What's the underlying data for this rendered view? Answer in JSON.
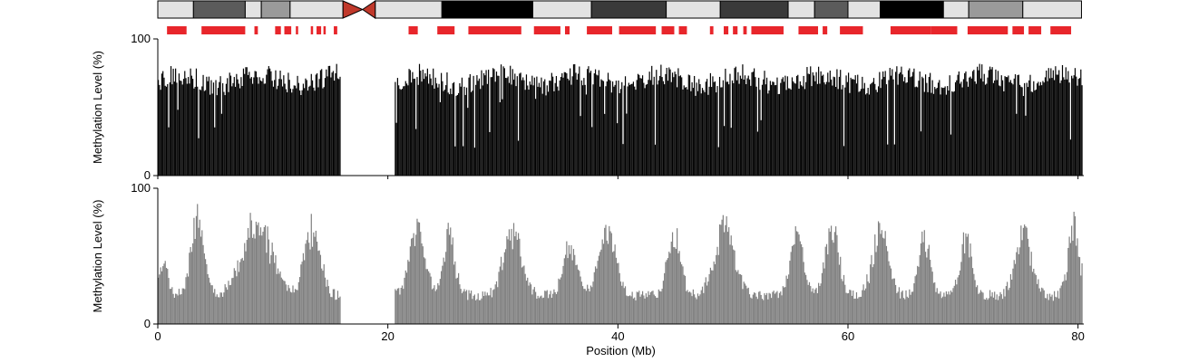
{
  "chart_data": {
    "type": "bar",
    "xlabel": "Position (Mb)",
    "xlim": [
      0,
      80.5
    ],
    "x_ticks": [
      0,
      20,
      40,
      60,
      80
    ],
    "gap_mb": [
      15.9,
      20.6
    ],
    "bin_mb": 0.1,
    "ideogram": {
      "centromere_mb": 17.8,
      "bands": [
        {
          "start": 0,
          "end": 3.1,
          "stain": "#e3e3e3"
        },
        {
          "start": 3.1,
          "end": 7.6,
          "stain": "#5b5b5b"
        },
        {
          "start": 7.6,
          "end": 9.0,
          "stain": "#e3e3e3"
        },
        {
          "start": 9.0,
          "end": 11.5,
          "stain": "#9a9a9a"
        },
        {
          "start": 11.5,
          "end": 16.1,
          "stain": "#e3e3e3"
        },
        {
          "start": 18.9,
          "end": 24.7,
          "stain": "#e3e3e3"
        },
        {
          "start": 24.7,
          "end": 32.6,
          "stain": "#000000"
        },
        {
          "start": 32.6,
          "end": 37.7,
          "stain": "#e3e3e3"
        },
        {
          "start": 37.7,
          "end": 44.2,
          "stain": "#3a3a3a"
        },
        {
          "start": 44.2,
          "end": 48.9,
          "stain": "#e3e3e3"
        },
        {
          "start": 48.9,
          "end": 54.8,
          "stain": "#3a3a3a"
        },
        {
          "start": 54.8,
          "end": 57.1,
          "stain": "#e3e3e3"
        },
        {
          "start": 57.1,
          "end": 60.0,
          "stain": "#5b5b5b"
        },
        {
          "start": 60.0,
          "end": 62.8,
          "stain": "#e3e3e3"
        },
        {
          "start": 62.8,
          "end": 68.3,
          "stain": "#000000"
        },
        {
          "start": 68.3,
          "end": 70.5,
          "stain": "#e3e3e3"
        },
        {
          "start": 70.5,
          "end": 75.2,
          "stain": "#9a9a9a"
        },
        {
          "start": 75.2,
          "end": 80.3,
          "stain": "#e3e3e3"
        }
      ]
    },
    "highlight_color": "#e8262b",
    "highlight_regions_mb": [
      [
        0.8,
        2.5
      ],
      [
        3.8,
        7.6
      ],
      [
        8.4,
        8.7
      ],
      [
        10.2,
        10.7
      ],
      [
        11.0,
        11.6
      ],
      [
        12.0,
        12.2
      ],
      [
        13.3,
        13.5
      ],
      [
        13.8,
        14.2
      ],
      [
        14.4,
        14.6
      ],
      [
        15.3,
        15.6
      ],
      [
        21.8,
        22.6
      ],
      [
        24.3,
        25.8
      ],
      [
        27.0,
        31.6
      ],
      [
        32.7,
        35.0
      ],
      [
        35.4,
        35.8
      ],
      [
        37.3,
        39.5
      ],
      [
        40.1,
        43.3
      ],
      [
        43.8,
        44.9
      ],
      [
        45.3,
        46.0
      ],
      [
        48.0,
        48.3
      ],
      [
        49.2,
        49.6
      ],
      [
        50.0,
        50.4
      ],
      [
        50.9,
        51.2
      ],
      [
        51.6,
        54.4
      ],
      [
        55.7,
        57.4
      ],
      [
        57.8,
        58.2
      ],
      [
        59.3,
        61.3
      ],
      [
        63.7,
        67.2
      ],
      [
        67.2,
        69.5
      ],
      [
        70.4,
        73.9
      ],
      [
        74.3,
        75.3
      ],
      [
        75.7,
        76.8
      ],
      [
        77.6,
        79.4
      ]
    ],
    "panels": [
      {
        "ylabel": "Methylation Level (%)",
        "ylim": [
          0,
          100
        ],
        "y_ticks": [
          0,
          100
        ],
        "bar_color": "#000000",
        "seed": 20240517,
        "base": 70,
        "variation": 16,
        "floor": 0,
        "dropout": 0.05
      },
      {
        "ylabel": "Methylation Level (%)",
        "ylim": [
          0,
          100
        ],
        "y_ticks": [
          0,
          100
        ],
        "bar_color": "#808080",
        "seed": 88123,
        "waves": [
          {
            "center": 0.4,
            "width": 0.8,
            "height": 45
          },
          {
            "center": 3.4,
            "width": 1.2,
            "height": 75
          },
          {
            "center": 8.6,
            "width": 2.6,
            "height": 75
          },
          {
            "center": 13.4,
            "width": 1.4,
            "height": 70
          },
          {
            "center": 22.5,
            "width": 1.4,
            "height": 70
          },
          {
            "center": 25.3,
            "width": 1.0,
            "height": 66
          },
          {
            "center": 30.8,
            "width": 1.6,
            "height": 68
          },
          {
            "center": 35.8,
            "width": 1.2,
            "height": 55
          },
          {
            "center": 39.0,
            "width": 1.6,
            "height": 66
          },
          {
            "center": 44.8,
            "width": 1.2,
            "height": 66
          },
          {
            "center": 49.2,
            "width": 1.8,
            "height": 70
          },
          {
            "center": 55.5,
            "width": 1.2,
            "height": 62
          },
          {
            "center": 58.6,
            "width": 1.2,
            "height": 72
          },
          {
            "center": 62.8,
            "width": 1.4,
            "height": 68
          },
          {
            "center": 66.6,
            "width": 1.0,
            "height": 62
          },
          {
            "center": 70.2,
            "width": 1.0,
            "height": 62
          },
          {
            "center": 75.2,
            "width": 1.4,
            "height": 68
          },
          {
            "center": 79.6,
            "width": 1.0,
            "height": 70
          }
        ],
        "floor_low": 17,
        "floor_high": 25
      }
    ]
  }
}
